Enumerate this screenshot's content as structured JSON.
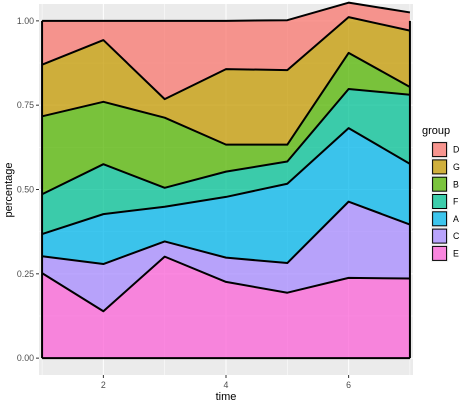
{
  "chart_data": {
    "type": "area",
    "stacked": "percent",
    "x": [
      1,
      2,
      3,
      4,
      5,
      6,
      7
    ],
    "xlabel": "time",
    "ylabel": "percentage",
    "xticks": [
      2,
      4,
      6
    ],
    "yticks": [
      "0.00",
      "0.25",
      "0.50",
      "0.75",
      "1.00"
    ],
    "xlim": [
      0.95,
      7.05
    ],
    "ylim": [
      -0.05,
      1.05
    ],
    "grid": true,
    "legend_position": "right",
    "legend_title": "group",
    "stack_order_bottom_to_top": [
      "E",
      "C",
      "A",
      "F",
      "B",
      "G",
      "D"
    ],
    "series": [
      {
        "name": "D",
        "color": "#F8766D",
        "values": [
          0.13,
          0.057,
          0.232,
          0.143,
          0.148,
          0.043,
          0.054
        ]
      },
      {
        "name": "G",
        "color": "#C49A00",
        "values": [
          0.153,
          0.183,
          0.055,
          0.224,
          0.221,
          0.106,
          0.167
        ]
      },
      {
        "name": "B",
        "color": "#53B400",
        "values": [
          0.231,
          0.185,
          0.208,
          0.08,
          0.05,
          0.107,
          0.023
        ]
      },
      {
        "name": "F",
        "color": "#00C094",
        "values": [
          0.118,
          0.148,
          0.056,
          0.075,
          0.066,
          0.116,
          0.205
        ]
      },
      {
        "name": "A",
        "color": "#00B6EB",
        "values": [
          0.066,
          0.148,
          0.103,
          0.18,
          0.235,
          0.218,
          0.18
        ]
      },
      {
        "name": "C",
        "color": "#A58AFF",
        "values": [
          0.05,
          0.14,
          0.045,
          0.072,
          0.088,
          0.226,
          0.16
        ]
      },
      {
        "name": "E",
        "color": "#FB61D7",
        "values": [
          0.252,
          0.139,
          0.301,
          0.226,
          0.194,
          0.238,
          0.236
        ]
      }
    ]
  }
}
